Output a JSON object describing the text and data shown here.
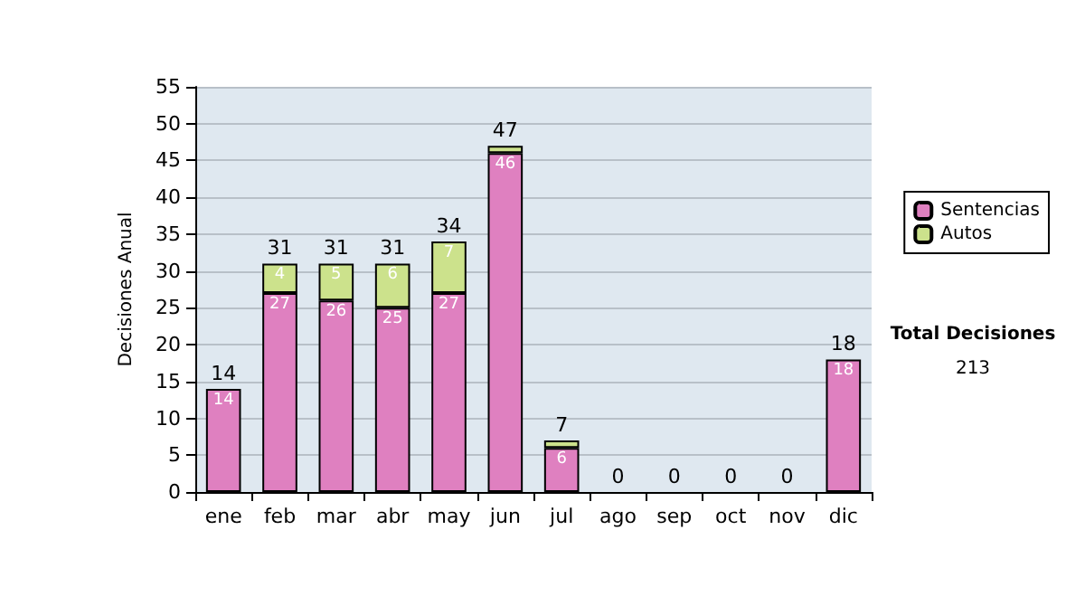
{
  "chart_data": {
    "type": "bar",
    "stacked": true,
    "ylabel": "Decisiones Anual",
    "categories": [
      "ene",
      "feb",
      "mar",
      "abr",
      "may",
      "jun",
      "jul",
      "ago",
      "sep",
      "oct",
      "nov",
      "dic"
    ],
    "series": [
      {
        "name": "Sentencias",
        "color": "#df80c0",
        "values": [
          14,
          27,
          26,
          25,
          27,
          46,
          6,
          0,
          0,
          0,
          0,
          18
        ],
        "value_labels": [
          "14",
          "27",
          "26",
          "25",
          "27",
          "46",
          "6",
          null,
          null,
          null,
          null,
          "18"
        ]
      },
      {
        "name": "Autos",
        "color": "#cce28c",
        "values": [
          0,
          4,
          5,
          6,
          7,
          1,
          1,
          0,
          0,
          0,
          0,
          0
        ],
        "value_labels": [
          null,
          "4",
          "5",
          "6",
          "7",
          null,
          null,
          null,
          null,
          null,
          null,
          null
        ]
      }
    ],
    "totals": [
      "14",
      "31",
      "31",
      "31",
      "34",
      "47",
      "7",
      "0",
      "0",
      "0",
      "0",
      "18"
    ],
    "ylim": [
      0,
      55
    ],
    "yticks": [
      0,
      5,
      10,
      15,
      20,
      25,
      30,
      35,
      40,
      45,
      50,
      55
    ],
    "grid": "y",
    "legend": "right",
    "annotations": [
      "Total Decisiones",
      "213"
    ]
  }
}
